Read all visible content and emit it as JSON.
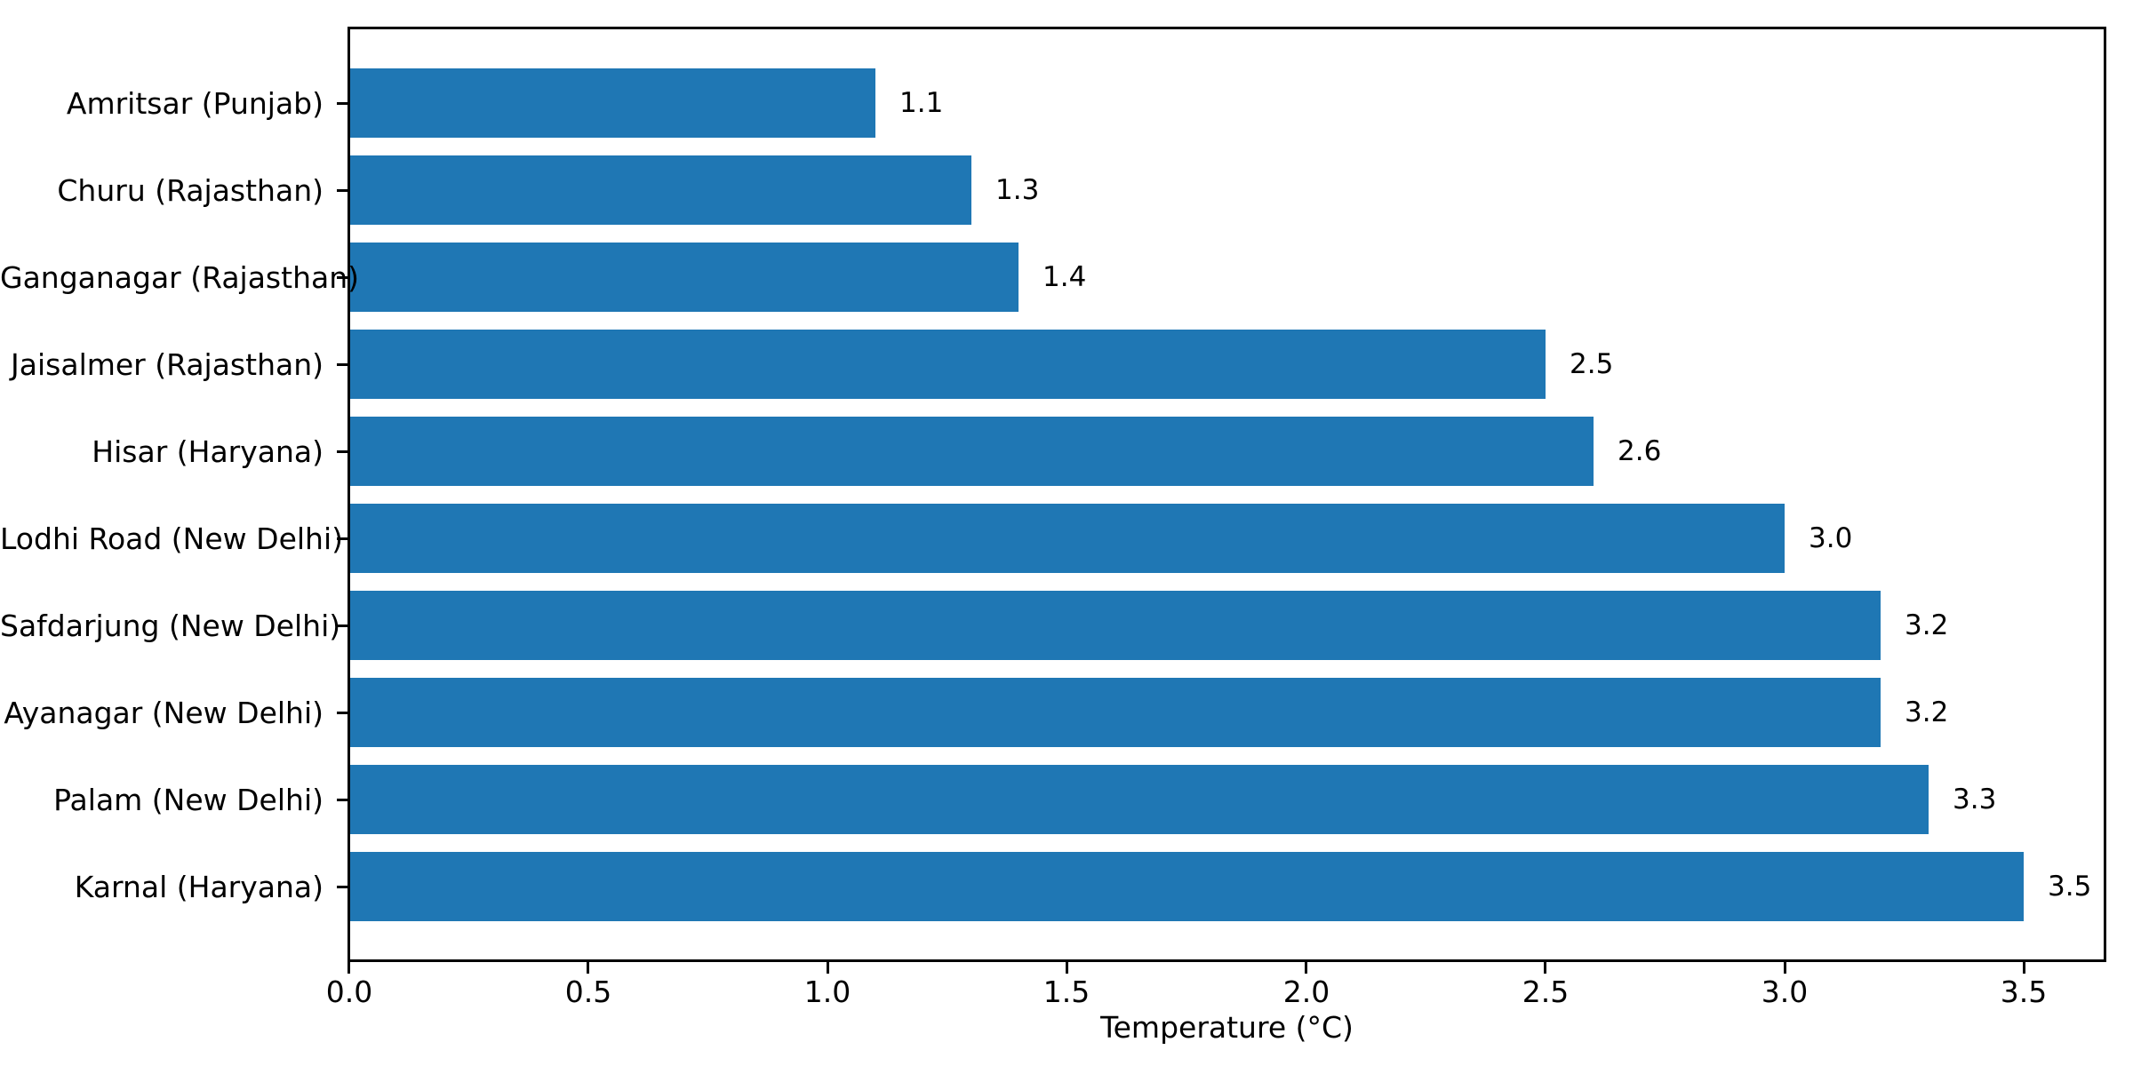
{
  "chart_data": {
    "type": "bar",
    "orientation": "horizontal",
    "title": "",
    "xlabel": "Temperature (°C)",
    "ylabel": "",
    "categories": [
      "Amritsar (Punjab)",
      "Churu (Rajasthan)",
      "Ganganagar (Rajasthan)",
      "Jaisalmer (Rajasthan)",
      "Hisar (Haryana)",
      "Lodhi Road (New Delhi)",
      "Safdarjung (New Delhi)",
      "Ayanagar (New Delhi)",
      "Palam (New Delhi)",
      "Karnal (Haryana)"
    ],
    "values": [
      1.1,
      1.3,
      1.4,
      2.5,
      2.6,
      3.0,
      3.2,
      3.2,
      3.3,
      3.5
    ],
    "value_labels": [
      "1.1",
      "1.3",
      "1.4",
      "2.5",
      "2.6",
      "3.0",
      "3.2",
      "3.2",
      "3.3",
      "3.5"
    ],
    "x_ticks": [
      0.0,
      0.5,
      1.0,
      1.5,
      2.0,
      2.5,
      3.0,
      3.5
    ],
    "x_tick_labels": [
      "0.0",
      "0.5",
      "1.0",
      "1.5",
      "2.0",
      "2.5",
      "3.0",
      "3.5"
    ],
    "xlim": [
      0,
      3.674
    ],
    "grid": false,
    "legend": null,
    "bar_color": "#1f77b4",
    "background_color": "#ffffff",
    "text_color": "#000000",
    "spine_color": "#000000"
  }
}
